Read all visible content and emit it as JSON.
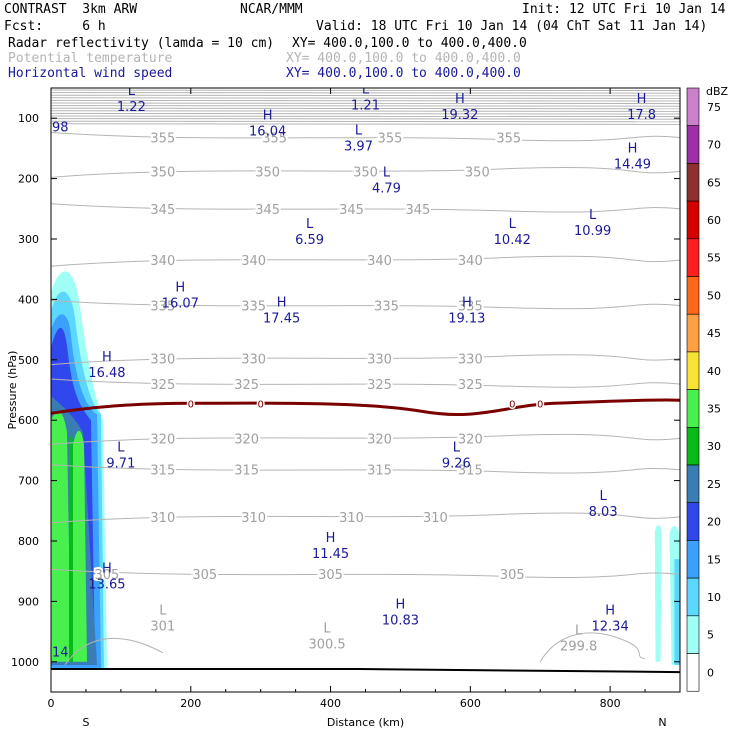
{
  "header": {
    "line1_left": "CONTRAST  3km ARW",
    "line1_center": "NCAR/MMM",
    "line1_right": "Init: 12 UTC Fri 10 Jan 14",
    "line2_left": "Fcst:     6 h",
    "line2_right": "Valid: 18 UTC Fri 10 Jan 14 (04 ChT Sat 11 Jan 14)",
    "fields": [
      {
        "name": "Radar reflectivity (lamda = 10 cm)",
        "xy": "XY= 400.0,100.0 to 400.0,400.0",
        "color": "#000000"
      },
      {
        "name": "Potential temperature",
        "xy": "XY= 400.0,100.0 to 400.0,400.0",
        "color": "#b4b4b4"
      },
      {
        "name": "Horizontal wind speed",
        "xy": "XY= 400.0,100.0 to 400.0,400.0",
        "color": "#1a1a9a"
      }
    ]
  },
  "chart_data": {
    "type": "cross-section",
    "xlabel": "Distance (km)",
    "ylabel": "Pressure (hPa)",
    "xlim": [
      0,
      900
    ],
    "ylim": [
      1050,
      50
    ],
    "x_ticks": [
      0,
      200,
      400,
      600,
      800
    ],
    "y_ticks": [
      100,
      200,
      300,
      400,
      500,
      600,
      700,
      800,
      900,
      1000
    ],
    "x_end_labels": {
      "left": "S",
      "right": "N"
    },
    "colorbar": {
      "unit": "dBZ",
      "levels": [
        0,
        5,
        10,
        15,
        20,
        25,
        30,
        35,
        40,
        45,
        50,
        55,
        60,
        65,
        70,
        75
      ],
      "colors": [
        "#ffffff",
        "#9ffff5",
        "#5cd7ff",
        "#3ba0ff",
        "#2f47ec",
        "#3a7db4",
        "#07ba1a",
        "#47f04c",
        "#f8e234",
        "#ffa044",
        "#ff6818",
        "#ff1f1f",
        "#d50000",
        "#8e3030",
        "#9f2fa6",
        "#cc80cc"
      ]
    },
    "theta_isentropes": [
      {
        "value": 355,
        "pressure": 132,
        "labels_x": [
          160,
          320,
          485,
          655
        ]
      },
      {
        "value": 350,
        "pressure": 188,
        "labels_x": [
          160,
          310,
          450,
          610
        ]
      },
      {
        "value": 345,
        "pressure": 250,
        "labels_x": [
          160,
          310,
          430,
          525
        ]
      },
      {
        "value": 340,
        "pressure": 335,
        "labels_x": [
          160,
          290,
          470,
          600
        ]
      },
      {
        "value": 335,
        "pressure": 410,
        "labels_x": [
          160,
          290,
          480,
          600
        ]
      },
      {
        "value": 330,
        "pressure": 498,
        "labels_x": [
          160,
          290,
          470,
          600
        ]
      },
      {
        "value": 325,
        "pressure": 540,
        "labels_x": [
          160,
          280,
          470,
          600
        ]
      },
      {
        "value": 320,
        "pressure": 630,
        "labels_x": [
          160,
          280,
          470,
          600
        ]
      },
      {
        "value": 315,
        "pressure": 682,
        "labels_x": [
          160,
          280,
          470,
          600
        ]
      },
      {
        "value": 310,
        "pressure": 760,
        "labels_x": [
          160,
          290,
          430,
          550
        ]
      },
      {
        "value": 305,
        "pressure": 855,
        "labels_x": [
          80,
          220,
          400,
          660
        ]
      }
    ],
    "freezing_level": {
      "label": "0",
      "pressure": 572,
      "label_x": [
        200,
        300,
        660,
        700
      ]
    },
    "wind_extrema": [
      {
        "type": "L",
        "value": "1.22",
        "x": 115,
        "p": 75
      },
      {
        "type": "L",
        "value": "1.21",
        "x": 450,
        "p": 72
      },
      {
        "type": "H",
        "value": "19.32",
        "x": 585,
        "p": 88
      },
      {
        "type": "H",
        "value": "17.8",
        "x": 845,
        "p": 88
      },
      {
        "type": "H",
        "value": "16.04",
        "x": 310,
        "p": 115
      },
      {
        "type": "L",
        "value": "3.97",
        "x": 440,
        "p": 140
      },
      {
        "type": "H",
        "value": "14.49",
        "x": 832,
        "p": 170
      },
      {
        "type": "L",
        "value": "4.79",
        "x": 480,
        "p": 210
      },
      {
        "type": "L",
        "value": "10.99",
        "x": 775,
        "p": 280
      },
      {
        "type": "L",
        "value": "6.59",
        "x": 370,
        "p": 295
      },
      {
        "type": "L",
        "value": "10.42",
        "x": 660,
        "p": 295
      },
      {
        "type": "H",
        "value": "16.07",
        "x": 185,
        "p": 400
      },
      {
        "type": "H",
        "value": "17.45",
        "x": 330,
        "p": 425
      },
      {
        "type": "H",
        "value": "19.13",
        "x": 595,
        "p": 425
      },
      {
        "type": "H",
        "value": "16.48",
        "x": 80,
        "p": 515
      },
      {
        "type": "L",
        "value": "9.71",
        "x": 100,
        "p": 665
      },
      {
        "type": "L",
        "value": "9.26",
        "x": 580,
        "p": 665
      },
      {
        "type": "L",
        "value": "8.03",
        "x": 790,
        "p": 745
      },
      {
        "type": "H",
        "value": "11.45",
        "x": 400,
        "p": 815
      },
      {
        "type": "H",
        "value": "13.65",
        "x": 80,
        "p": 865
      },
      {
        "type": "H",
        "value": "10.83",
        "x": 500,
        "p": 925
      },
      {
        "type": "H",
        "value": "12.34",
        "x": 800,
        "p": 935
      }
    ],
    "theta_min_labels": [
      {
        "type": "L",
        "value": "301",
        "x": 160,
        "p": 935
      },
      {
        "type": "L",
        "value": "300.5",
        "x": 395,
        "p": 965
      },
      {
        "type": "L",
        "value": "299.8",
        "x": 755,
        "p": 968
      },
      {
        "type": "",
        "value": "98",
        "x": 10,
        "p": 115
      },
      {
        "type": "",
        "value": "14",
        "x": 10,
        "p": 985
      }
    ]
  }
}
